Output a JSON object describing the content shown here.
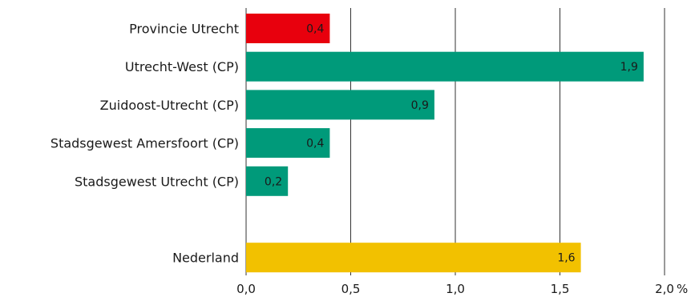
{
  "chart_data": {
    "type": "bar",
    "orientation": "horizontal",
    "categories": [
      "Provincie Utrecht",
      "Utrecht-West (CP)",
      "Zuidoost-Utrecht (CP)",
      "Stadsgewest Amersfoort (CP)",
      "Stadsgewest Utrecht (CP)",
      "",
      "Nederland"
    ],
    "values": [
      0.4,
      1.9,
      0.9,
      0.4,
      0.2,
      null,
      1.6
    ],
    "value_labels": [
      "0,4",
      "1,9",
      "0,9",
      "0,4",
      "0,2",
      "",
      "1,6"
    ],
    "bar_colors": [
      "#e8000d",
      "#009a7a",
      "#009a7a",
      "#009a7a",
      "#009a7a",
      "",
      "#f2c100"
    ],
    "xlim": [
      0,
      2.0
    ],
    "ticks": [
      0,
      0.5,
      1.0,
      1.5,
      2.0
    ],
    "tick_labels": [
      "0,0",
      "0,5",
      "1,0",
      "1,5",
      "2,0"
    ],
    "unit": "%",
    "grid": true,
    "title": "",
    "xlabel": "",
    "ylabel": ""
  }
}
